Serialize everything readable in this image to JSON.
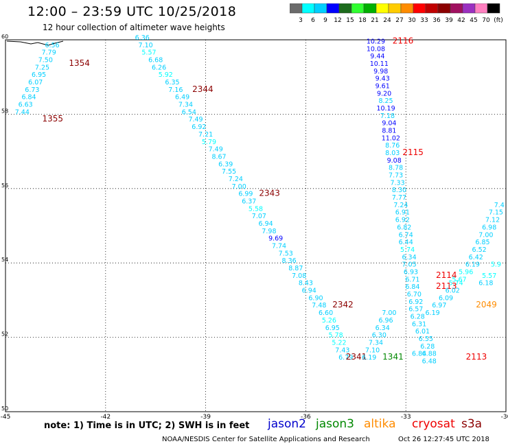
{
  "title": "12:00 – 23:59 UTC 10/25/2018",
  "subtitle": "12 hour collection of altimeter wave heights",
  "color_scale": {
    "colors": [
      "#6b6b6b",
      "#00ffff",
      "#00cfff",
      "#0000ff",
      "#1c6b1c",
      "#30ff30",
      "#00b000",
      "#ffff00",
      "#ffcc00",
      "#ff8c00",
      "#ff0000",
      "#c00000",
      "#8b0000",
      "#a01060",
      "#9b30c0",
      "#ff80c0",
      "#000000"
    ],
    "labels": [
      "3",
      "6",
      "9",
      "12",
      "15",
      "18",
      "21",
      "24",
      "27",
      "30",
      "33",
      "36",
      "39",
      "42",
      "45",
      "70",
      "(ft)"
    ]
  },
  "footer": {
    "note": "note:  1) Time is in UTC;  2) SWH is in feet",
    "credit": "NOAA/NESDIS Center for Satellite Applications and Research",
    "timestamp": "Oct 26 12:27:45 UTC 2018",
    "satellites": [
      {
        "name": "jason2",
        "color": "#0000cc"
      },
      {
        "name": "jason3",
        "color": "#008800"
      },
      {
        "name": "altika",
        "color": "#ff8c00"
      },
      {
        "name": "cryosat",
        "color": "#ee0000"
      },
      {
        "name": "s3a",
        "color": "#8b0000"
      }
    ]
  },
  "chart_data": {
    "type": "scatter",
    "xlim": [
      -45,
      -30
    ],
    "ylim": [
      50,
      60
    ],
    "x_ticks": [
      "-45",
      "-42",
      "-39",
      "-36",
      "-33",
      "-30"
    ],
    "y_ticks": [
      "50",
      "52",
      "54",
      "56",
      "58",
      "60"
    ],
    "grid": true,
    "tracks": [
      {
        "label": "1354",
        "color": "#8b0000",
        "label_pos": [
          -43.1,
          59.3
        ],
        "points": [
          [
            -43.6,
            59.8,
            "6.56",
            "#00cfff"
          ],
          [
            -43.7,
            59.6,
            "7.79",
            "#00cfff"
          ],
          [
            -43.8,
            59.4,
            "7.50",
            "#00cfff"
          ],
          [
            -43.9,
            59.2,
            "7.25",
            "#00cfff"
          ],
          [
            -44.0,
            59.0,
            "6.95",
            "#00cfff"
          ],
          [
            -44.1,
            58.8,
            "6.07",
            "#00cfff"
          ],
          [
            -44.2,
            58.6,
            "6.73",
            "#00cfff"
          ],
          [
            -44.3,
            58.4,
            "6.84",
            "#00cfff"
          ],
          [
            -44.4,
            58.2,
            "6.63",
            "#00cfff"
          ],
          [
            -44.5,
            58.0,
            "7.44",
            "#00cfff"
          ]
        ]
      },
      {
        "label": "1355",
        "color": "#8b0000",
        "label_pos": [
          -43.9,
          57.8
        ],
        "points": []
      },
      {
        "label": "2344",
        "color": "#8b0000",
        "label_pos": [
          -39.4,
          58.6
        ],
        "points": [
          [
            -40.9,
            60.0,
            "6.36",
            "#00cfff"
          ],
          [
            -40.8,
            59.8,
            "7.10",
            "#00cfff"
          ],
          [
            -40.7,
            59.6,
            "5.57",
            "#00ffff"
          ],
          [
            -40.5,
            59.4,
            "6.68",
            "#00cfff"
          ],
          [
            -40.4,
            59.2,
            "6.26",
            "#00cfff"
          ],
          [
            -40.2,
            59.0,
            "5.92",
            "#00ffff"
          ],
          [
            -40.0,
            58.8,
            "6.35",
            "#00cfff"
          ],
          [
            -39.9,
            58.6,
            "7.16",
            "#00cfff"
          ],
          [
            -39.7,
            58.4,
            "6.49",
            "#00cfff"
          ],
          [
            -39.6,
            58.2,
            "7.34",
            "#00cfff"
          ],
          [
            -39.5,
            58.0,
            "6.54",
            "#00cfff"
          ],
          [
            -39.3,
            57.8,
            "7.49",
            "#00cfff"
          ],
          [
            -39.2,
            57.6,
            "6.92",
            "#00cfff"
          ],
          [
            -39.0,
            57.4,
            "7.21",
            "#00cfff"
          ],
          [
            -38.9,
            57.2,
            "5.79",
            "#00ffff"
          ],
          [
            -38.7,
            57.0,
            "7.49",
            "#00cfff"
          ],
          [
            -38.6,
            56.8,
            "8.67",
            "#00cfff"
          ],
          [
            -38.4,
            56.6,
            "6.39",
            "#00cfff"
          ],
          [
            -38.3,
            56.4,
            "7.55",
            "#00cfff"
          ],
          [
            -38.1,
            56.2,
            "7.24",
            "#00cfff"
          ],
          [
            -38.0,
            56.0,
            "7.00",
            "#00cfff"
          ],
          [
            -37.8,
            55.8,
            "6.99",
            "#00cfff"
          ],
          [
            -37.7,
            55.6,
            "6.37",
            "#00cfff"
          ],
          [
            -37.5,
            55.4,
            "5.58",
            "#00ffff"
          ],
          [
            -37.4,
            55.2,
            "7.07",
            "#00cfff"
          ],
          [
            -37.2,
            55.0,
            "6.94",
            "#00cfff"
          ],
          [
            -37.1,
            54.8,
            "7.98",
            "#00cfff"
          ],
          [
            -36.9,
            54.6,
            "9.69",
            "#0000ff"
          ],
          [
            -36.8,
            54.4,
            "7.74",
            "#00cfff"
          ],
          [
            -36.6,
            54.2,
            "7.53",
            "#00cfff"
          ],
          [
            -36.5,
            54.0,
            "8.36",
            "#00cfff"
          ],
          [
            -36.3,
            53.8,
            "8.87",
            "#00cfff"
          ],
          [
            -36.2,
            53.6,
            "7.08",
            "#00cfff"
          ],
          [
            -36.0,
            53.4,
            "8.43",
            "#00cfff"
          ],
          [
            -35.9,
            53.2,
            "6.94",
            "#00cfff"
          ],
          [
            -35.7,
            53.0,
            "6.90",
            "#00cfff"
          ],
          [
            -35.6,
            52.8,
            "7.48",
            "#00cfff"
          ]
        ]
      },
      {
        "label": "2343",
        "color": "#8b0000",
        "label_pos": [
          -37.4,
          55.8
        ],
        "points": []
      },
      {
        "label": "2342",
        "color": "#8b0000",
        "label_pos": [
          -35.2,
          52.8
        ],
        "points": [
          [
            -35.4,
            52.6,
            "6.60",
            "#00cfff"
          ],
          [
            -35.3,
            52.4,
            "5.26",
            "#00ffff"
          ],
          [
            -35.2,
            52.2,
            "6.95",
            "#00cfff"
          ],
          [
            -35.1,
            52.0,
            "5.78",
            "#00ffff"
          ],
          [
            -35.0,
            51.8,
            "5.22",
            "#00ffff"
          ],
          [
            -34.9,
            51.6,
            "7.43",
            "#00cfff"
          ],
          [
            -34.8,
            51.4,
            "6.79",
            "#00cfff"
          ]
        ]
      },
      {
        "label": "2341",
        "color": "#8b0000",
        "label_pos": [
          -34.8,
          51.4
        ],
        "points": []
      },
      {
        "label": "1341",
        "color": "#008800",
        "label_pos": [
          -33.7,
          51.4
        ],
        "points": [
          [
            -34.1,
            51.4,
            "6.19",
            "#00cfff"
          ],
          [
            -34.0,
            51.6,
            "7.10",
            "#00cfff"
          ],
          [
            -33.9,
            51.8,
            "7.34",
            "#00cfff"
          ],
          [
            -33.8,
            52.0,
            "6.30",
            "#00cfff"
          ],
          [
            -33.7,
            52.2,
            "6.34",
            "#00cfff"
          ],
          [
            -33.6,
            52.4,
            "6.96",
            "#00cfff"
          ],
          [
            -33.5,
            52.6,
            "7.00",
            "#00cfff"
          ]
        ]
      },
      {
        "label": "2116",
        "color": "#ee0000",
        "label_pos": [
          -33.4,
          59.9
        ],
        "points": [
          [
            -33.9,
            59.9,
            "10.29",
            "#0000ff"
          ],
          [
            -33.9,
            59.7,
            "10.08",
            "#0000ff"
          ],
          [
            -33.85,
            59.5,
            "9.44",
            "#0000ff"
          ],
          [
            -33.8,
            59.3,
            "10.11",
            "#0000ff"
          ],
          [
            -33.75,
            59.1,
            "9.98",
            "#0000ff"
          ],
          [
            -33.7,
            58.9,
            "9.43",
            "#0000ff"
          ],
          [
            -33.7,
            58.7,
            "9.61",
            "#0000ff"
          ],
          [
            -33.65,
            58.5,
            "9.20",
            "#0000ff"
          ],
          [
            -33.6,
            58.3,
            "8.25",
            "#00cfff"
          ],
          [
            -33.6,
            58.1,
            "10.19",
            "#0000ff"
          ],
          [
            -33.55,
            57.9,
            "7.18",
            "#00cfff"
          ],
          [
            -33.5,
            57.7,
            "9.04",
            "#0000ff"
          ],
          [
            -33.5,
            57.5,
            "8.81",
            "#0000ff"
          ],
          [
            -33.45,
            57.3,
            "11.02",
            "#0000ff"
          ],
          [
            -33.4,
            57.1,
            "8.76",
            "#00cfff"
          ],
          [
            -33.4,
            56.9,
            "8.03",
            "#00cfff"
          ],
          [
            -33.35,
            56.7,
            "9.08",
            "#0000ff"
          ],
          [
            -33.3,
            56.5,
            "8.78",
            "#00cfff"
          ],
          [
            -33.3,
            56.3,
            "7.73",
            "#00cfff"
          ],
          [
            -33.25,
            56.1,
            "7.33",
            "#00cfff"
          ],
          [
            -33.2,
            55.9,
            "8.30",
            "#00cfff"
          ],
          [
            -33.2,
            55.7,
            "7.77",
            "#00cfff"
          ],
          [
            -33.15,
            55.5,
            "7.24",
            "#00cfff"
          ],
          [
            -33.1,
            55.3,
            "6.91",
            "#00cfff"
          ],
          [
            -33.1,
            55.1,
            "6.92",
            "#00cfff"
          ],
          [
            -33.05,
            54.9,
            "6.82",
            "#00cfff"
          ],
          [
            -33.0,
            54.7,
            "6.74",
            "#00cfff"
          ],
          [
            -33.0,
            54.5,
            "6.44",
            "#00cfff"
          ],
          [
            -32.95,
            54.3,
            "5.74",
            "#00ffff"
          ],
          [
            -32.9,
            54.1,
            "6.34",
            "#00cfff"
          ],
          [
            -32.9,
            53.9,
            "7.05",
            "#00cfff"
          ],
          [
            -32.85,
            53.7,
            "6.93",
            "#00cfff"
          ],
          [
            -32.8,
            53.5,
            "6.71",
            "#00cfff"
          ],
          [
            -32.8,
            53.3,
            "6.84",
            "#00cfff"
          ],
          [
            -32.75,
            53.1,
            "6.70",
            "#00cfff"
          ],
          [
            -32.7,
            52.9,
            "6.92",
            "#00cfff"
          ],
          [
            -32.7,
            52.7,
            "6.57",
            "#00cfff"
          ],
          [
            -32.65,
            52.5,
            "6.28",
            "#00cfff"
          ],
          [
            -32.6,
            52.3,
            "6.31",
            "#00cfff"
          ]
        ]
      },
      {
        "label": "2115",
        "color": "#ee0000",
        "label_pos": [
          -33.1,
          56.9
        ],
        "points": []
      },
      {
        "label": "2114",
        "color": "#ee0000",
        "label_pos": [
          -32.1,
          53.6
        ],
        "points": []
      },
      {
        "label": "2113",
        "color": "#ee0000",
        "label_pos": [
          -32.1,
          53.3
        ],
        "points": [
          [
            -32.5,
            52.1,
            "6.01",
            "#00cfff"
          ],
          [
            -32.4,
            51.9,
            "6.55",
            "#00cfff"
          ],
          [
            -32.35,
            51.7,
            "6.28",
            "#00cfff"
          ],
          [
            -32.3,
            51.5,
            "6.88",
            "#00cfff"
          ],
          [
            -32.3,
            51.3,
            "6.48",
            "#00cfff"
          ],
          [
            -32.6,
            51.5,
            "6.84",
            "#00cfff"
          ]
        ]
      },
      {
        "label": "2113",
        "color": "#ee0000",
        "label_pos": [
          -31.2,
          51.4
        ],
        "points": []
      },
      {
        "label": "2049",
        "color": "#ff8c00",
        "label_pos": [
          -30.9,
          52.8
        ],
        "points": [
          [
            -32.2,
            52.6,
            "6.19",
            "#00cfff"
          ],
          [
            -32.0,
            52.8,
            "6.97",
            "#00cfff"
          ],
          [
            -31.8,
            53.0,
            "6.09",
            "#00cfff"
          ],
          [
            -31.6,
            53.2,
            "6.02",
            "#00cfff"
          ],
          [
            -31.5,
            53.4,
            "5.74",
            "#00ffff"
          ],
          [
            -31.4,
            53.5,
            "5.67",
            "#00ffff"
          ],
          [
            -31.2,
            53.7,
            "5.96",
            "#00ffff"
          ],
          [
            -31.0,
            53.9,
            "6.19",
            "#00cfff"
          ],
          [
            -30.9,
            54.1,
            "6.42",
            "#00cfff"
          ],
          [
            -30.8,
            54.3,
            "6.52",
            "#00cfff"
          ],
          [
            -30.7,
            54.5,
            "6.85",
            "#00cfff"
          ],
          [
            -30.6,
            54.7,
            "7.00",
            "#00cfff"
          ],
          [
            -30.5,
            54.9,
            "6.98",
            "#00cfff"
          ],
          [
            -30.4,
            55.1,
            "7.12",
            "#00cfff"
          ],
          [
            -30.3,
            55.3,
            "7.15",
            "#00cfff"
          ],
          [
            -30.2,
            55.5,
            "7.4",
            "#00cfff"
          ],
          [
            -30.5,
            53.6,
            "5.57",
            "#00ffff"
          ],
          [
            -30.3,
            53.9,
            "5.9",
            "#00ffff"
          ],
          [
            -30.6,
            53.4,
            "6.18",
            "#00cfff"
          ]
        ]
      }
    ]
  }
}
